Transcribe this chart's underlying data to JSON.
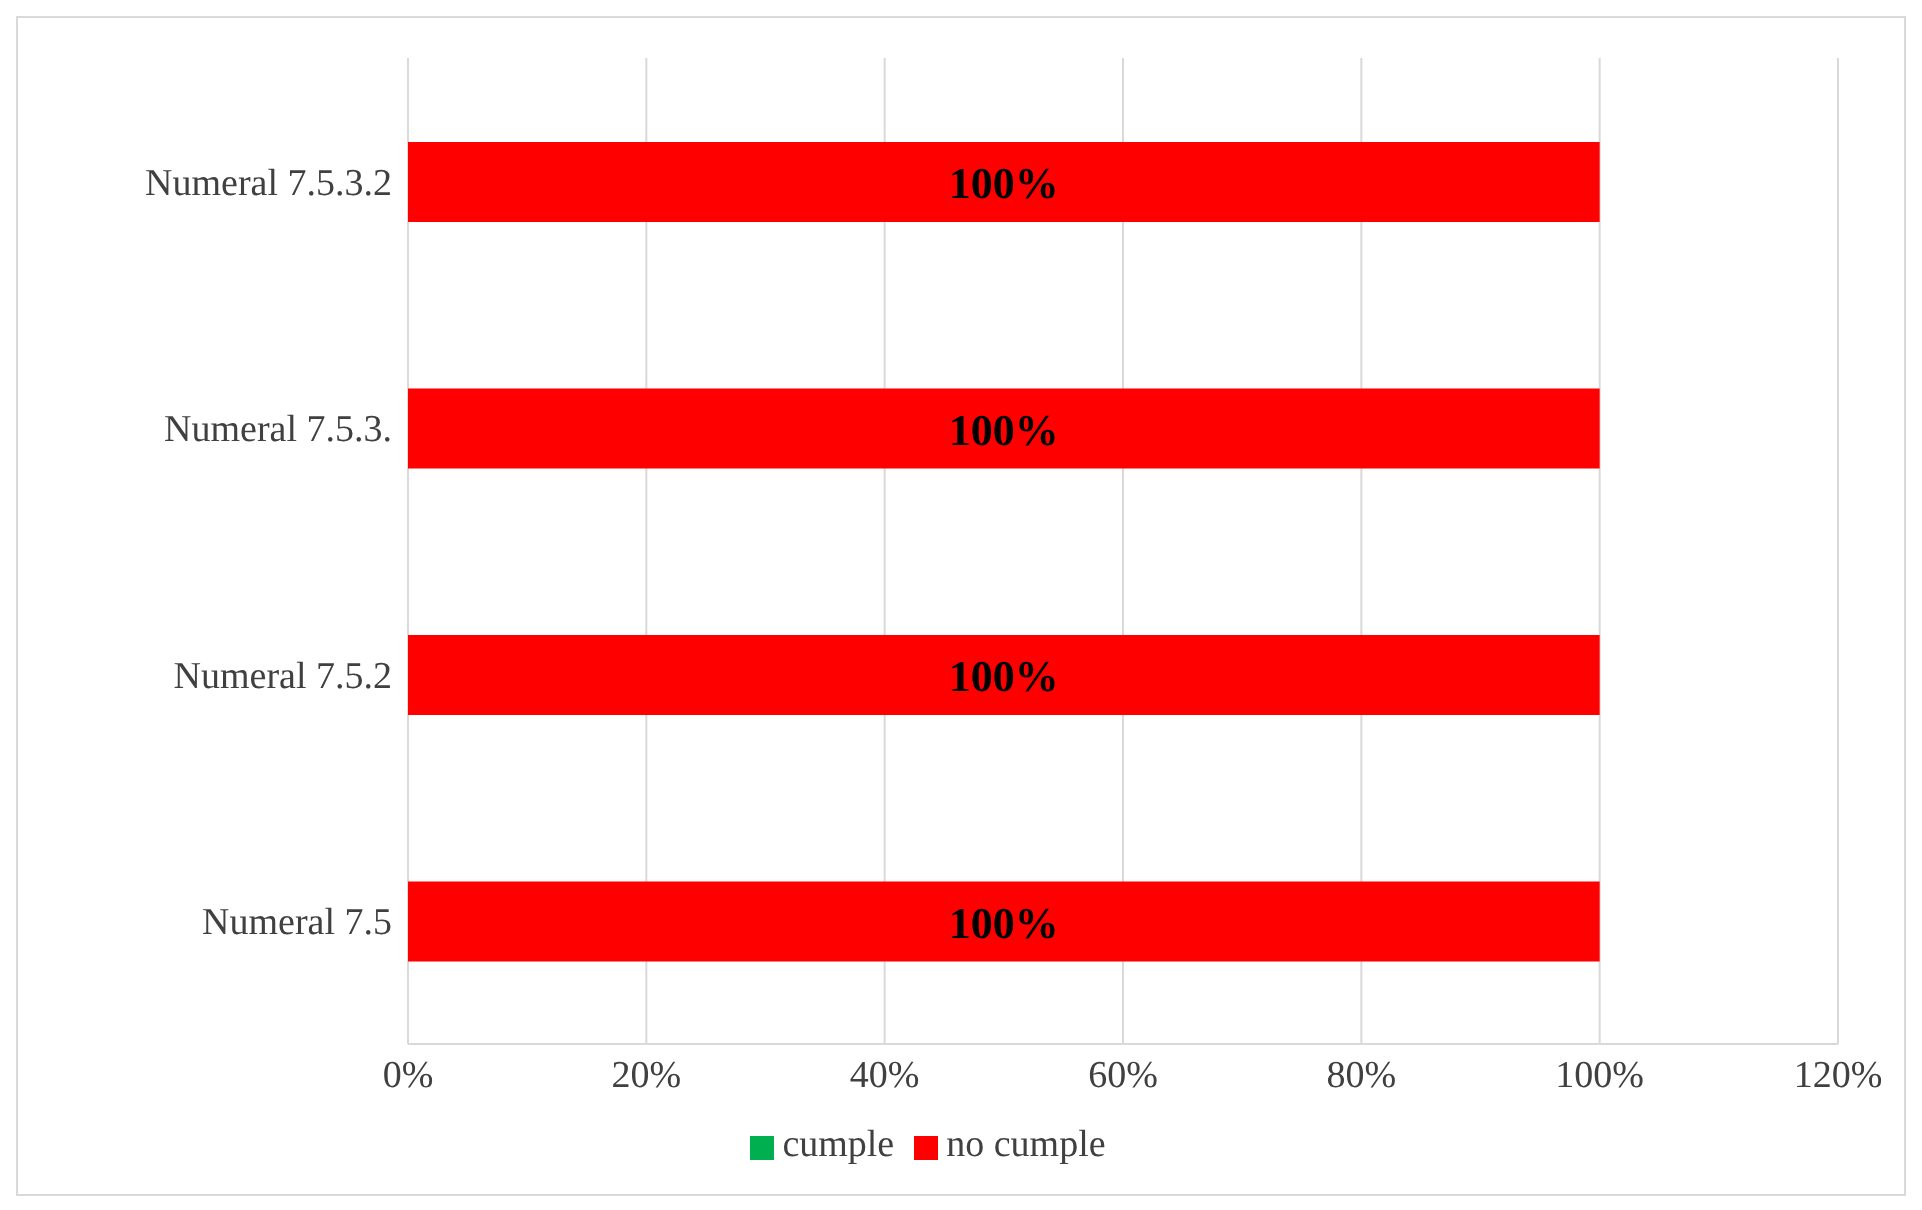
{
  "chart_data": {
    "type": "bar",
    "orientation": "horizontal",
    "stacked": true,
    "categories": [
      "Numeral 7.5.3.2",
      "Numeral 7.5.3.",
      "Numeral 7.5.2",
      "Numeral 7.5"
    ],
    "series": [
      {
        "name": "cumple",
        "color": "#00b050",
        "values": [
          0,
          0,
          0,
          0
        ]
      },
      {
        "name": "no cumple",
        "color": "#ff0000",
        "values": [
          100,
          100,
          100,
          100
        ],
        "value_labels": [
          "100%",
          "100%",
          "100%",
          "100%"
        ]
      }
    ],
    "xlim": [
      0,
      120
    ],
    "xticks": [
      {
        "value": 0,
        "label": "0%"
      },
      {
        "value": 20,
        "label": "20%"
      },
      {
        "value": 40,
        "label": "40%"
      },
      {
        "value": 60,
        "label": "60%"
      },
      {
        "value": 80,
        "label": "80%"
      },
      {
        "value": 100,
        "label": "100%"
      },
      {
        "value": 120,
        "label": "120%"
      }
    ],
    "grid": "x",
    "legend": "bottom"
  }
}
